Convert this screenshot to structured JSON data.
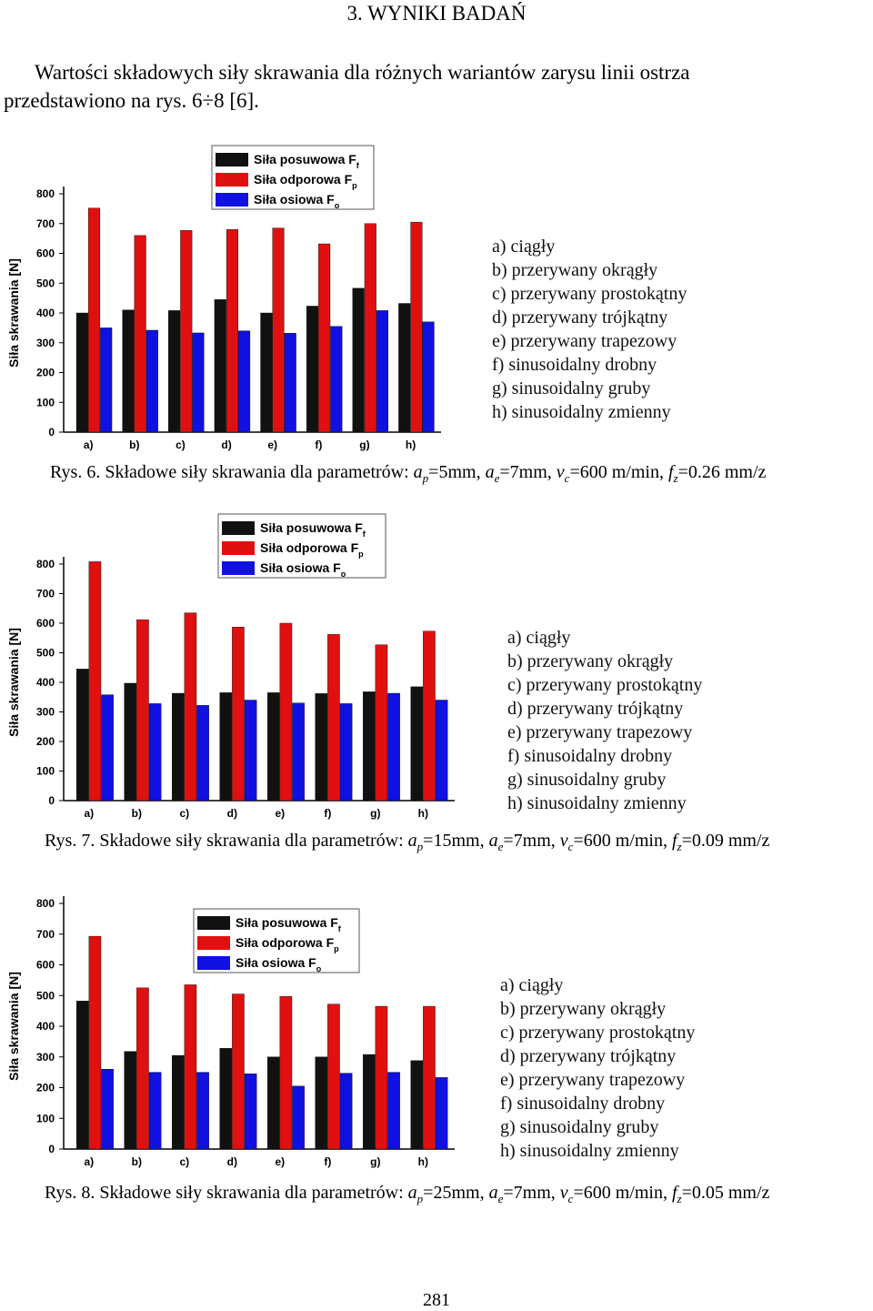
{
  "heading": "3. WYNIKI BADAŃ",
  "intro_line1": "Wartości składowych siły skrawania dla różnych wariantów zarysu linii ostrza",
  "intro_line2": "przedstawiono na rys. 6÷8  [6].",
  "page_number": "281",
  "legend_labels": {
    "s1": "Siła posuwowa F",
    "s1_sub": "f",
    "s2": "Siła odporowa F",
    "s2_sub": "p",
    "s3": "Siła osiowa F",
    "s3_sub": "o"
  },
  "colors": {
    "posuwowa": "#111111",
    "odporowa": "#e01010",
    "osiowa": "#1010e0"
  },
  "variants_desc": [
    "a) ciągły",
    "b) przerywany okrągły",
    "c) przerywany prostokątny",
    "d) przerywany trójkątny",
    "e) przerywany trapezowy",
    "f) sinusoidalny drobny",
    "g) sinusoidalny gruby",
    "h) sinusoidalny zmienny"
  ],
  "figures": [
    {
      "caption_prefix": "Rys. 6. Składowe siły  skrawania dla parametrów: ",
      "ap": "=5mm, ",
      "ae": "=7mm, ",
      "vc": "=600 m/min, ",
      "fz": "=0.26 mm/z"
    },
    {
      "caption_prefix": "Rys. 7. Składowe siły  skrawania dla parametrów: ",
      "ap": "=15mm, ",
      "ae": "=7mm, ",
      "vc": "=600 m/min, ",
      "fz": "=0.09 mm/z"
    },
    {
      "caption_prefix": "Rys. 8. Składowe siły  skrawania dla parametrów: ",
      "ap": "=25mm, ",
      "ae": "=7mm, ",
      "vc": "=600 m/min, ",
      "fz": "=0.05 mm/z"
    }
  ],
  "chart_data": [
    {
      "type": "bar",
      "categories": [
        "a)",
        "b)",
        "c)",
        "d)",
        "e)",
        "f)",
        "g)",
        "h)"
      ],
      "ylabel": "Siła skrawania [N]",
      "ylim": [
        0,
        800
      ],
      "yticks": [
        0,
        100,
        200,
        300,
        400,
        500,
        600,
        700,
        800
      ],
      "legend": "top-center",
      "series": [
        {
          "name": "Siła posuwowa Ff",
          "values": [
            400,
            410,
            408,
            445,
            400,
            423,
            483,
            432
          ]
        },
        {
          "name": "Siła odporowa Fp",
          "values": [
            752,
            660,
            677,
            680,
            685,
            632,
            700,
            705
          ]
        },
        {
          "name": "Siła osiowa Fo",
          "values": [
            350,
            342,
            333,
            340,
            332,
            355,
            408,
            370
          ]
        }
      ]
    },
    {
      "type": "bar",
      "categories": [
        "a)",
        "b)",
        "c)",
        "d)",
        "e)",
        "f)",
        "g)",
        "h)"
      ],
      "ylabel": "Siła skrawania [N]",
      "ylim": [
        0,
        800
      ],
      "yticks": [
        0,
        100,
        200,
        300,
        400,
        500,
        600,
        700,
        800
      ],
      "legend": "top-center",
      "series": [
        {
          "name": "Siła posuwowa Ff",
          "values": [
            445,
            397,
            363,
            365,
            365,
            362,
            368,
            385
          ]
        },
        {
          "name": "Siła odporowa Fp",
          "values": [
            808,
            612,
            635,
            587,
            600,
            562,
            527,
            573
          ]
        },
        {
          "name": "Siła osiowa Fo",
          "values": [
            358,
            328,
            322,
            340,
            330,
            328,
            363,
            340
          ]
        }
      ]
    },
    {
      "type": "bar",
      "categories": [
        "a)",
        "b)",
        "c)",
        "d)",
        "e)",
        "f)",
        "g)",
        "h)"
      ],
      "ylabel": "Siła skrawania [N]",
      "ylim": [
        0,
        800
      ],
      "yticks": [
        0,
        100,
        200,
        300,
        400,
        500,
        600,
        700,
        800
      ],
      "legend": "top-center",
      "series": [
        {
          "name": "Siła posuwowa Ff",
          "values": [
            482,
            318,
            305,
            328,
            300,
            300,
            308,
            288
          ]
        },
        {
          "name": "Siła odporowa Fp",
          "values": [
            693,
            525,
            535,
            505,
            497,
            472,
            465,
            465
          ]
        },
        {
          "name": "Siła osiowa Fo",
          "values": [
            260,
            250,
            250,
            245,
            205,
            247,
            250,
            233
          ]
        }
      ]
    }
  ]
}
